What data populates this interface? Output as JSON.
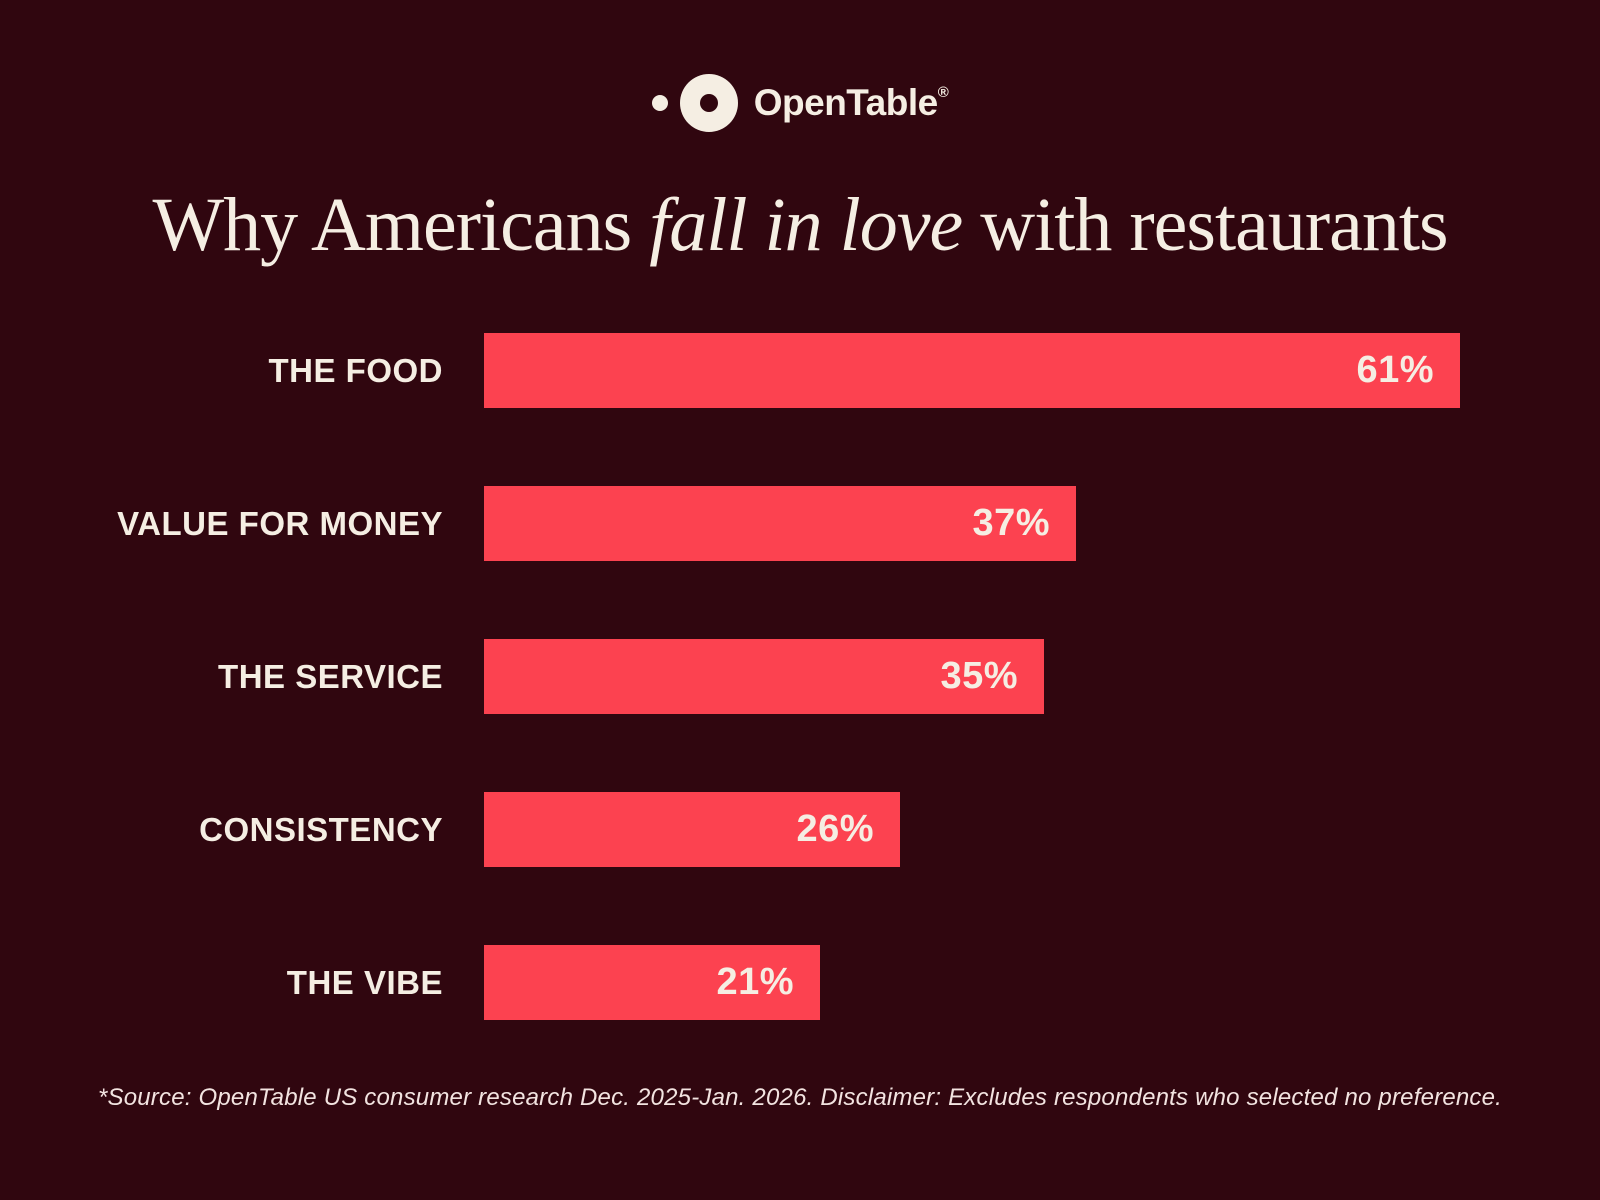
{
  "page": {
    "background_color": "#30060F",
    "text_color": "#F5EEE3",
    "accent_color": "#FC4250"
  },
  "header": {
    "brand": "OpenTable",
    "registered_mark": "®"
  },
  "title": {
    "prefix": "Why Americans ",
    "emphasis": "fall in love",
    "suffix": " with restaurants"
  },
  "chart_data": {
    "type": "bar",
    "orientation": "horizontal",
    "title": "Why Americans fall in love with restaurants",
    "categories": [
      "THE FOOD",
      "VALUE FOR MONEY",
      "THE SERVICE",
      "CONSISTENCY",
      "THE VIBE"
    ],
    "values": [
      61,
      37,
      35,
      26,
      21
    ],
    "value_labels": [
      "61%",
      "37%",
      "35%",
      "26%",
      "21%"
    ],
    "xlabel": "",
    "ylabel": "",
    "xlim": [
      0,
      61
    ],
    "grid": false,
    "legend": false,
    "bar_color": "#FC4250",
    "value_label_position": "inside-end"
  },
  "footer": {
    "note": "*Source: OpenTable US consumer research Dec. 2025-Jan. 2026. Disclaimer: Excludes respondents who selected no preference."
  }
}
